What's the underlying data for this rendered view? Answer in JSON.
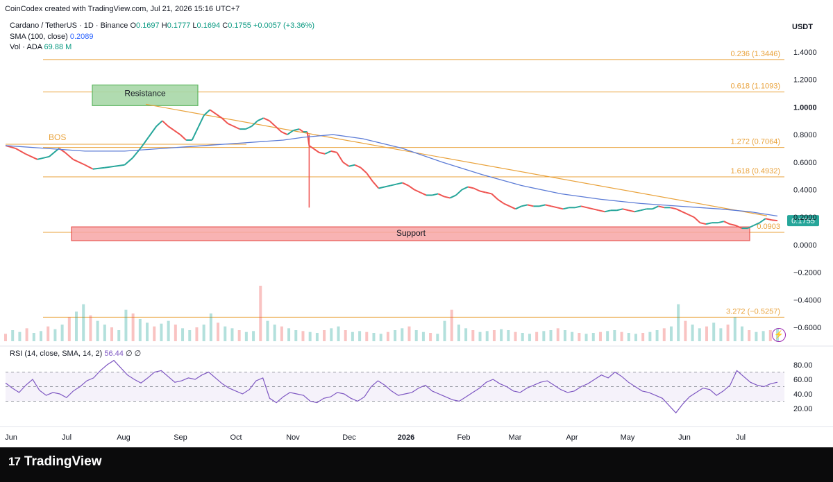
{
  "header": {
    "created_by": "CoinCodex created with TradingView.com, Jul 21, 2026 15:16 UTC+7"
  },
  "legend": {
    "pair": "Cardano / TetherUS · 1D · Binance",
    "o_label": "O",
    "o_value": "0.1697",
    "h_label": "H",
    "h_value": "0.1777",
    "l_label": "L",
    "l_value": "0.1694",
    "c_label": "C",
    "c_value": "0.1755",
    "change": "+0.0057 (+3.36%)",
    "sma_label": "SMA (100, close)",
    "sma_value": "0.2089",
    "vol_label": "Vol · ADA",
    "vol_value": "69.88 M",
    "rsi_label": "RSI (14, close, SMA, 14, 2)",
    "rsi_value": "56.44",
    "rsi_na1": "∅",
    "rsi_na2": "∅"
  },
  "currency": "USDT",
  "branding": {
    "logo_mark": "17",
    "logo_text": "TradingView"
  },
  "colors": {
    "up": "#26a69a",
    "down": "#ef5350",
    "sma": "#5b7bd6",
    "fib": "#e9a23b",
    "rsi": "#7e57c2",
    "support_fill": "#f7a6a6",
    "resistance_fill": "#a8d8a8",
    "price_tag": "#26a69a"
  },
  "chart_data": {
    "type": "line",
    "title": "Cardano / TetherUS · 1D · Binance",
    "ylim": [
      -0.7,
      1.5
    ],
    "y_ticks": [
      "1.4000",
      "1.2000",
      "1.0000",
      "0.8000",
      "0.6000",
      "0.4000",
      "0.2000",
      "0.0000",
      "−0.2000",
      "−0.4000",
      "−0.6000"
    ],
    "x_ticks": [
      "Jun",
      "Jul",
      "Aug",
      "Sep",
      "Oct",
      "Nov",
      "Dec",
      "2026",
      "Feb",
      "Mar",
      "Apr",
      "May",
      "Jun",
      "Jul"
    ],
    "last_price": "0.1755",
    "price_path": [
      [
        0,
        0.72
      ],
      [
        5,
        0.7
      ],
      [
        10,
        0.66
      ],
      [
        16,
        0.62
      ],
      [
        22,
        0.64
      ],
      [
        27,
        0.7
      ],
      [
        30,
        0.67
      ],
      [
        34,
        0.62
      ],
      [
        40,
        0.58
      ],
      [
        44,
        0.55
      ],
      [
        50,
        0.56
      ],
      [
        55,
        0.57
      ],
      [
        60,
        0.58
      ],
      [
        64,
        0.63
      ],
      [
        68,
        0.7
      ],
      [
        72,
        0.78
      ],
      [
        76,
        0.86
      ],
      [
        79,
        0.9
      ],
      [
        82,
        0.86
      ],
      [
        85,
        0.83
      ],
      [
        88,
        0.8
      ],
      [
        91,
        0.76
      ],
      [
        94,
        0.76
      ],
      [
        97,
        0.85
      ],
      [
        100,
        0.94
      ],
      [
        103,
        0.98
      ],
      [
        106,
        0.95
      ],
      [
        109,
        0.92
      ],
      [
        112,
        0.88
      ],
      [
        115,
        0.86
      ],
      [
        118,
        0.84
      ],
      [
        121,
        0.84
      ],
      [
        124,
        0.86
      ],
      [
        127,
        0.9
      ],
      [
        130,
        0.92
      ],
      [
        133,
        0.9
      ],
      [
        136,
        0.86
      ],
      [
        139,
        0.82
      ],
      [
        142,
        0.8
      ],
      [
        145,
        0.83
      ],
      [
        148,
        0.84
      ],
      [
        150,
        0.82
      ],
      [
        152,
        0.82
      ],
      [
        153,
        0.72
      ],
      [
        155,
        0.7
      ],
      [
        158,
        0.67
      ],
      [
        161,
        0.66
      ],
      [
        164,
        0.68
      ],
      [
        167,
        0.67
      ],
      [
        170,
        0.6
      ],
      [
        173,
        0.57
      ],
      [
        176,
        0.58
      ],
      [
        179,
        0.56
      ],
      [
        182,
        0.52
      ],
      [
        185,
        0.46
      ],
      [
        188,
        0.41
      ],
      [
        191,
        0.42
      ],
      [
        194,
        0.43
      ],
      [
        197,
        0.44
      ],
      [
        200,
        0.45
      ],
      [
        203,
        0.43
      ],
      [
        206,
        0.4
      ],
      [
        209,
        0.38
      ],
      [
        212,
        0.36
      ],
      [
        215,
        0.36
      ],
      [
        218,
        0.37
      ],
      [
        221,
        0.35
      ],
      [
        224,
        0.34
      ],
      [
        227,
        0.36
      ],
      [
        230,
        0.4
      ],
      [
        233,
        0.42
      ],
      [
        236,
        0.41
      ],
      [
        239,
        0.39
      ],
      [
        242,
        0.38
      ],
      [
        245,
        0.37
      ],
      [
        248,
        0.33
      ],
      [
        251,
        0.3
      ],
      [
        254,
        0.28
      ],
      [
        257,
        0.26
      ],
      [
        260,
        0.28
      ],
      [
        263,
        0.29
      ],
      [
        266,
        0.28
      ],
      [
        269,
        0.28
      ],
      [
        272,
        0.29
      ],
      [
        275,
        0.28
      ],
      [
        278,
        0.27
      ],
      [
        281,
        0.26
      ],
      [
        284,
        0.27
      ],
      [
        287,
        0.27
      ],
      [
        290,
        0.28
      ],
      [
        293,
        0.27
      ],
      [
        296,
        0.26
      ],
      [
        299,
        0.25
      ],
      [
        302,
        0.24
      ],
      [
        305,
        0.25
      ],
      [
        308,
        0.25
      ],
      [
        311,
        0.26
      ],
      [
        314,
        0.25
      ],
      [
        317,
        0.24
      ],
      [
        320,
        0.25
      ],
      [
        323,
        0.26
      ],
      [
        326,
        0.26
      ],
      [
        329,
        0.28
      ],
      [
        332,
        0.27
      ],
      [
        335,
        0.27
      ],
      [
        338,
        0.26
      ],
      [
        341,
        0.24
      ],
      [
        344,
        0.22
      ],
      [
        347,
        0.2
      ],
      [
        350,
        0.16
      ],
      [
        353,
        0.15
      ],
      [
        356,
        0.16
      ],
      [
        359,
        0.16
      ],
      [
        362,
        0.17
      ],
      [
        365,
        0.15
      ],
      [
        368,
        0.14
      ],
      [
        371,
        0.12
      ],
      [
        374,
        0.12
      ],
      [
        377,
        0.14
      ],
      [
        380,
        0.16
      ],
      [
        383,
        0.19
      ],
      [
        386,
        0.18
      ],
      [
        389,
        0.1755
      ]
    ],
    "sma_path": [
      [
        0,
        0.72
      ],
      [
        20,
        0.7
      ],
      [
        40,
        0.68
      ],
      [
        60,
        0.68
      ],
      [
        80,
        0.7
      ],
      [
        100,
        0.72
      ],
      [
        120,
        0.74
      ],
      [
        140,
        0.76
      ],
      [
        150,
        0.78
      ],
      [
        165,
        0.8
      ],
      [
        180,
        0.77
      ],
      [
        200,
        0.7
      ],
      [
        220,
        0.6
      ],
      [
        240,
        0.51
      ],
      [
        260,
        0.43
      ],
      [
        280,
        0.37
      ],
      [
        300,
        0.33
      ],
      [
        320,
        0.3
      ],
      [
        340,
        0.28
      ],
      [
        360,
        0.26
      ],
      [
        375,
        0.24
      ],
      [
        389,
        0.2089
      ]
    ],
    "fib_levels": [
      {
        "label": "0.236 (1.3446)",
        "value": 1.3446
      },
      {
        "label": "0.618 (1.1093)",
        "value": 1.1093
      },
      {
        "label": "1.272 (0.7064)",
        "value": 0.7064
      },
      {
        "label": "1.618 (0.4932)",
        "value": 0.4932
      },
      {
        "label": "0.0903",
        "value": 0.0903
      },
      {
        "label": "3.272 (−0.5257)",
        "value": -0.5257
      }
    ],
    "annotations": {
      "resistance": "Resistance",
      "support": "Support",
      "bos": "BOS"
    },
    "rsi": {
      "ylim": [
        0,
        100
      ],
      "ticks": [
        "80.00",
        "60.00",
        "40.00",
        "20.00"
      ],
      "bands": [
        70,
        50,
        30
      ],
      "values": [
        55,
        48,
        42,
        52,
        60,
        45,
        38,
        42,
        40,
        35,
        44,
        50,
        58,
        62,
        72,
        80,
        86,
        76,
        66,
        60,
        55,
        62,
        70,
        72,
        64,
        56,
        58,
        62,
        60,
        66,
        70,
        62,
        54,
        48,
        44,
        40,
        46,
        58,
        62,
        34,
        28,
        36,
        42,
        40,
        38,
        30,
        28,
        34,
        36,
        42,
        40,
        34,
        30,
        36,
        50,
        58,
        52,
        44,
        38,
        40,
        42,
        48,
        52,
        44,
        40,
        36,
        32,
        30,
        36,
        42,
        48,
        56,
        60,
        54,
        50,
        44,
        42,
        48,
        52,
        56,
        58,
        52,
        46,
        42,
        44,
        50,
        54,
        60,
        66,
        62,
        70,
        64,
        56,
        50,
        44,
        42,
        38,
        34,
        24,
        14,
        26,
        36,
        42,
        48,
        46,
        38,
        44,
        52,
        72,
        64,
        56,
        52,
        50,
        54,
        56
      ]
    },
    "volume": {
      "values": [
        8,
        12,
        10,
        14,
        9,
        11,
        16,
        13,
        18,
        26,
        32,
        40,
        28,
        22,
        18,
        15,
        12,
        34,
        30,
        24,
        20,
        16,
        19,
        22,
        18,
        14,
        12,
        15,
        18,
        30,
        20,
        16,
        14,
        12,
        10,
        11,
        60,
        22,
        18,
        16,
        14,
        12,
        11,
        10,
        9,
        12,
        14,
        16,
        12,
        10,
        11,
        10,
        9,
        8,
        10,
        12,
        14,
        16,
        12,
        10,
        9,
        8,
        22,
        34,
        18,
        14,
        12,
        10,
        11,
        12,
        13,
        12,
        10,
        9,
        8,
        10,
        11,
        12,
        14,
        12,
        10,
        9,
        8,
        9,
        10,
        11,
        12,
        10,
        9,
        8,
        9,
        10,
        12,
        14,
        16,
        40,
        22,
        18,
        14,
        16,
        20,
        14,
        18,
        26,
        16,
        12,
        10,
        11,
        12,
        14
      ]
    }
  }
}
